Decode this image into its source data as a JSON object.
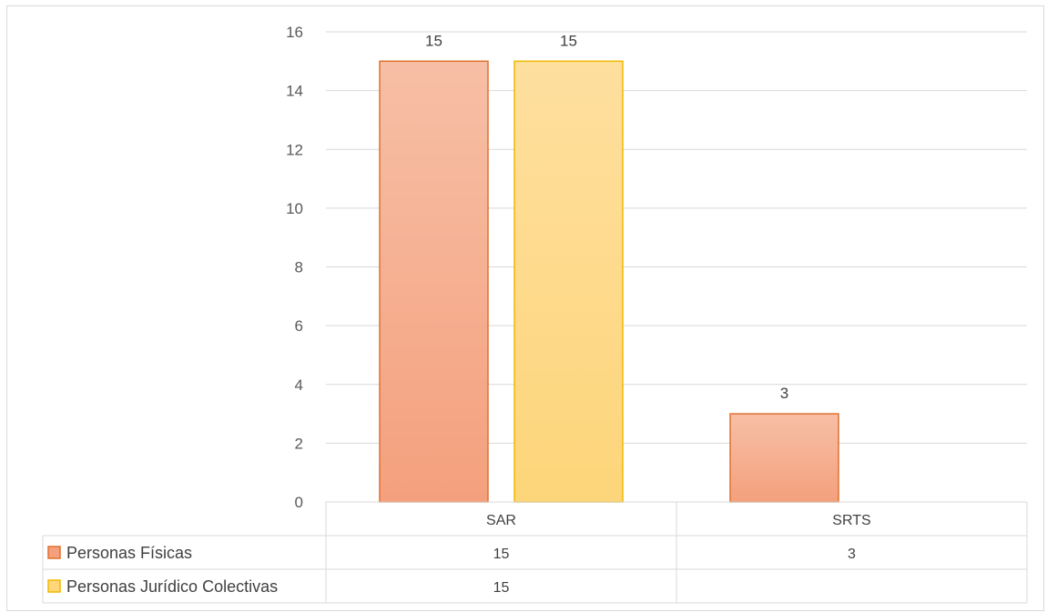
{
  "chart_data": {
    "type": "bar",
    "categories": [
      "SAR",
      "SRTS"
    ],
    "series": [
      {
        "name": "Personas Físicas",
        "values": [
          15,
          3
        ],
        "color": "#f4a07d",
        "stroke": "#e0702e"
      },
      {
        "name": "Personas Jurídico Colectivas",
        "values": [
          15,
          null
        ],
        "color": "#ffd67a",
        "stroke": "#f0b800"
      }
    ],
    "ylim": [
      0,
      16
    ],
    "yticks": [
      0,
      2,
      4,
      6,
      8,
      10,
      12,
      14,
      16
    ],
    "grid": true,
    "data_table": true
  }
}
